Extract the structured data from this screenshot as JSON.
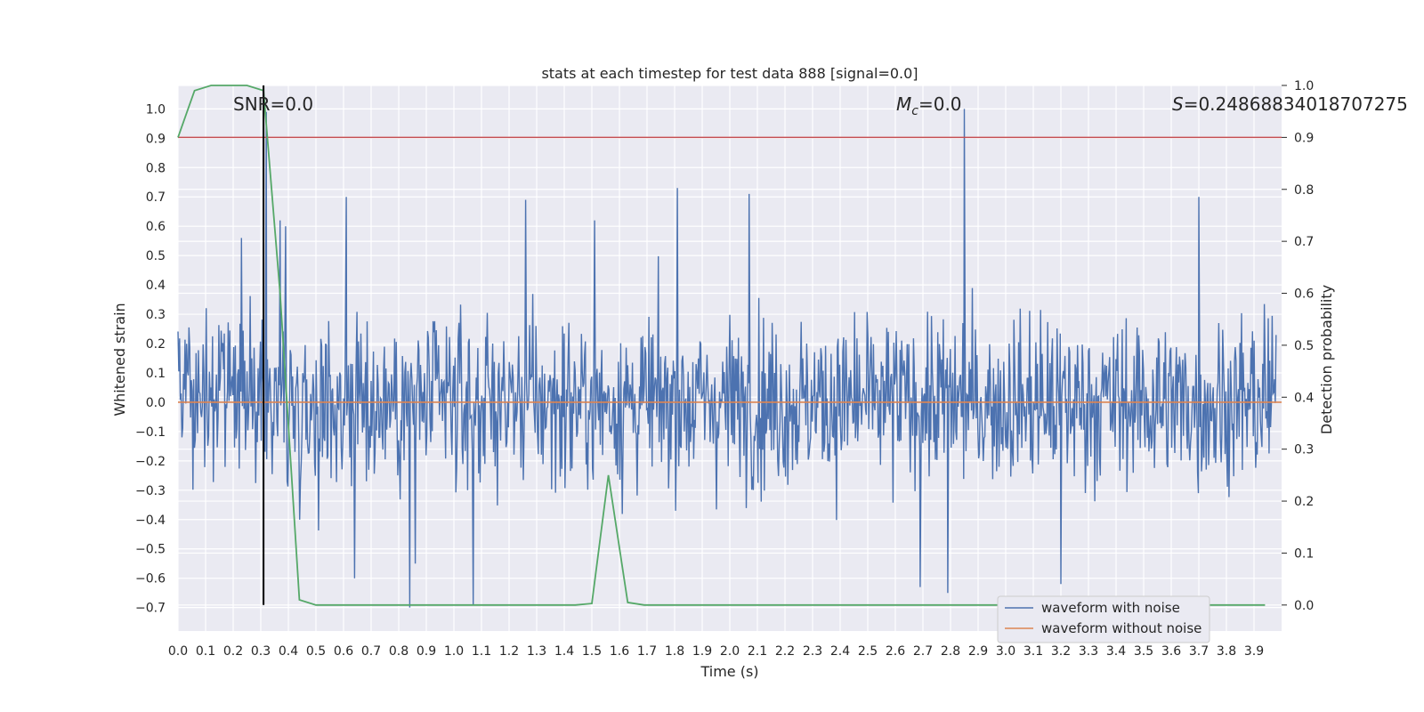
{
  "chart_data": {
    "type": "line",
    "title": "stats at each timestep for test data 888 [signal=0.0]",
    "xlabel": "Time (s)",
    "ylabel": "Whitened strain",
    "y2label": "Detection probability",
    "xlim": [
      0.0,
      4.0
    ],
    "ylim": [
      -0.78,
      1.08
    ],
    "y2lim": [
      -0.05,
      1.0
    ],
    "x_ticks": [
      "0.0",
      "0.1",
      "0.2",
      "0.3",
      "0.4",
      "0.5",
      "0.6",
      "0.7",
      "0.8",
      "0.9",
      "1.0",
      "1.1",
      "1.2",
      "1.3",
      "1.4",
      "1.5",
      "1.6",
      "1.7",
      "1.8",
      "1.9",
      "2.0",
      "2.1",
      "2.2",
      "2.3",
      "2.4",
      "2.5",
      "2.6",
      "2.7",
      "2.8",
      "2.9",
      "3.0",
      "3.1",
      "3.2",
      "3.3",
      "3.4",
      "3.5",
      "3.6",
      "3.7",
      "3.8",
      "3.9"
    ],
    "y_ticks": [
      "1.0",
      "0.9",
      "0.8",
      "0.7",
      "0.6",
      "0.5",
      "0.4",
      "0.3",
      "0.2",
      "0.1",
      "0.0",
      "−0.1",
      "−0.2",
      "−0.3",
      "−0.4",
      "−0.5",
      "−0.6",
      "−0.7"
    ],
    "y2_ticks": [
      "1.0",
      "0.9",
      "0.8",
      "0.7",
      "0.6",
      "0.5",
      "0.4",
      "0.3",
      "0.2",
      "0.1",
      "0.0"
    ],
    "grid": true,
    "legend": {
      "placement": "lower-right",
      "entries": [
        "waveform with noise",
        "waveform without noise"
      ]
    },
    "annotations": {
      "snr": "SNR=0.0",
      "mc_symbol": "M",
      "mc_sub": "c",
      "mc_value": "=0.0",
      "s_symbol": "S",
      "s_value": "=0.24868834018707275"
    },
    "colors": {
      "noise": "#4c72b0",
      "clean": "#dd8452",
      "probability": "#55a868",
      "threshold": "#c44e52",
      "marker": "#000000",
      "background": "#eaeaf2",
      "grid": "#ffffff"
    },
    "series": [
      {
        "name": "waveform with noise",
        "description_values": "dense noise, mostly within -0.55..0.55, notable spikes",
        "spikes": [
          [
            0.23,
            0.56
          ],
          [
            0.32,
            0.99
          ],
          [
            0.37,
            0.62
          ],
          [
            0.39,
            0.6
          ],
          [
            0.61,
            0.7
          ],
          [
            1.26,
            0.69
          ],
          [
            1.51,
            0.62
          ],
          [
            1.81,
            0.73
          ],
          [
            2.07,
            0.71
          ],
          [
            2.85,
            1.0
          ],
          [
            3.7,
            0.7
          ],
          [
            0.84,
            -0.7
          ],
          [
            1.07,
            -0.69
          ],
          [
            2.79,
            -0.65
          ],
          [
            2.69,
            -0.63
          ],
          [
            3.2,
            -0.62
          ],
          [
            0.64,
            -0.6
          ],
          [
            0.86,
            -0.55
          ]
        ]
      },
      {
        "name": "waveform without noise",
        "x": [
          0.0,
          4.0
        ],
        "values": [
          0.0,
          0.0
        ]
      },
      {
        "name": "detection probability",
        "axis": "right",
        "x": [
          0.0,
          0.06,
          0.12,
          0.18,
          0.25,
          0.31,
          0.37,
          0.44,
          0.5,
          0.56,
          0.62,
          0.68,
          0.75,
          0.81,
          0.87,
          0.94,
          1.0,
          1.06,
          1.12,
          1.19,
          1.25,
          1.31,
          1.38,
          1.44,
          1.5,
          1.56,
          1.63,
          1.69,
          1.75,
          1.81,
          1.87,
          1.94,
          2.0,
          2.5,
          3.0,
          3.5,
          3.94
        ],
        "values": [
          0.9,
          0.99,
          1.0,
          1.0,
          1.0,
          0.99,
          0.6,
          0.01,
          0.0,
          0.0,
          0.0,
          0.0,
          0.0,
          0.0,
          0.0,
          0.0,
          0.0,
          0.0,
          0.0,
          0.0,
          0.0,
          0.0,
          0.0,
          0.0,
          0.003,
          0.25,
          0.005,
          0.0,
          0.0,
          0.0,
          0.0,
          0.0,
          0.0,
          0.0,
          0.0,
          0.0,
          0.0
        ]
      },
      {
        "name": "threshold",
        "axis": "right",
        "values": [
          0.9
        ]
      },
      {
        "name": "peak marker",
        "x": [
          0.31
        ]
      }
    ]
  }
}
